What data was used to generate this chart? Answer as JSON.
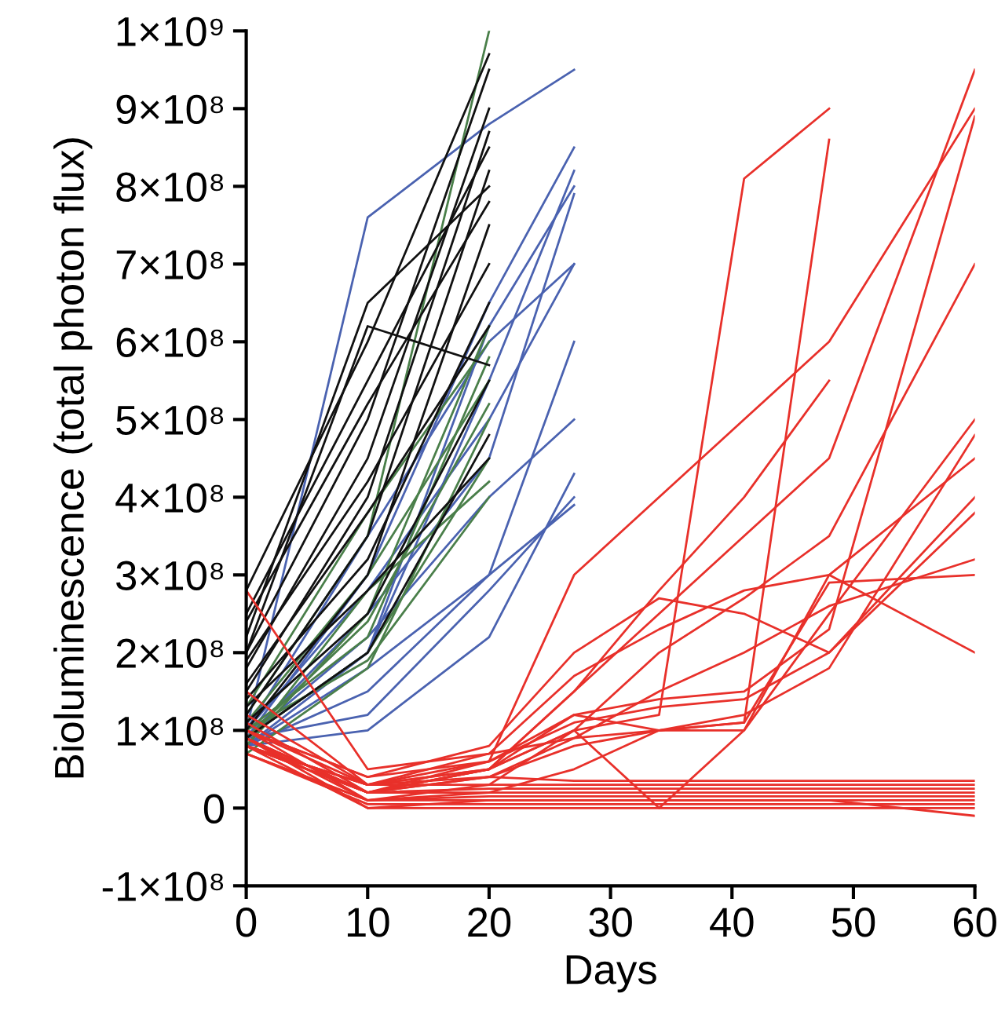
{
  "chart_data": {
    "type": "line",
    "xlabel": "Days",
    "ylabel": "Bioluminescence (total photon flux)",
    "xlim": [
      0,
      60
    ],
    "xticks": [
      0,
      10,
      20,
      30,
      40,
      50,
      60
    ],
    "ylim": [
      -100000000.0,
      1000000000.0
    ],
    "yticks": [
      {
        "value": -100000000.0,
        "label": "-1×10⁸"
      },
      0,
      {
        "value": 100000000.0,
        "label": "1×10⁸"
      },
      {
        "value": 200000000.0,
        "label": "2×10⁸"
      },
      {
        "value": 300000000.0,
        "label": "3×10⁸"
      },
      {
        "value": 400000000.0,
        "label": "4×10⁸"
      },
      {
        "value": 500000000.0,
        "label": "5×10⁸"
      },
      {
        "value": 600000000.0,
        "label": "6×10⁸"
      },
      {
        "value": 700000000.0,
        "label": "7×10⁸"
      },
      {
        "value": 800000000.0,
        "label": "8×10⁸"
      },
      {
        "value": 900000000.0,
        "label": "9×10⁸"
      },
      {
        "value": 1000000000.0,
        "label": "1×10⁹"
      }
    ],
    "grid": false,
    "legend": false,
    "marker": "none",
    "line_style": "solid",
    "series": [
      {
        "color": "#4a62b0",
        "x": [
          0,
          10,
          20,
          27
        ],
        "values": [
          100000000.0,
          760000000.0,
          880000000.0,
          950000000.0
        ]
      },
      {
        "color": "#4a62b0",
        "x": [
          0,
          10,
          20,
          27
        ],
        "values": [
          90000000.0,
          300000000.0,
          650000000.0,
          850000000.0
        ]
      },
      {
        "color": "#4a62b0",
        "x": [
          0,
          10,
          20,
          27
        ],
        "values": [
          80000000.0,
          200000000.0,
          550000000.0,
          820000000.0
        ]
      },
      {
        "color": "#4a62b0",
        "x": [
          0,
          10,
          20,
          27
        ],
        "values": [
          90000000.0,
          250000000.0,
          450000000.0,
          790000000.0
        ]
      },
      {
        "color": "#4a62b0",
        "x": [
          0,
          10,
          20,
          27
        ],
        "values": [
          100000000.0,
          350000000.0,
          600000000.0,
          700000000.0
        ]
      },
      {
        "color": "#4a62b0",
        "x": [
          0,
          10,
          20,
          27
        ],
        "values": [
          80000000.0,
          150000000.0,
          300000000.0,
          600000000.0
        ]
      },
      {
        "color": "#4a62b0",
        "x": [
          0,
          10,
          20,
          27
        ],
        "values": [
          90000000.0,
          220000000.0,
          400000000.0,
          500000000.0
        ]
      },
      {
        "color": "#4a62b0",
        "x": [
          0,
          10,
          20,
          27
        ],
        "values": [
          80000000.0,
          100000000.0,
          220000000.0,
          430000000.0
        ]
      },
      {
        "color": "#4a62b0",
        "x": [
          0,
          10,
          20,
          27
        ],
        "values": [
          90000000.0,
          120000000.0,
          280000000.0,
          400000000.0
        ]
      },
      {
        "color": "#4a62b0",
        "x": [
          0,
          10,
          20,
          27
        ],
        "values": [
          80000000.0,
          180000000.0,
          300000000.0,
          390000000.0
        ]
      },
      {
        "color": "#4a62b0",
        "x": [
          0,
          10,
          20,
          27
        ],
        "values": [
          100000000.0,
          280000000.0,
          500000000.0,
          700000000.0
        ]
      },
      {
        "color": "#4a62b0",
        "x": [
          0,
          10,
          20,
          27
        ],
        "values": [
          90000000.0,
          200000000.0,
          620000000.0,
          800000000.0
        ]
      },
      {
        "color": "#4a7f4a",
        "x": [
          0,
          10,
          20
        ],
        "values": [
          120000000.0,
          350000000.0,
          1000000000.0
        ]
      },
      {
        "color": "#4a7f4a",
        "x": [
          0,
          10,
          20
        ],
        "values": [
          80000000.0,
          250000000.0,
          620000000.0
        ]
      },
      {
        "color": "#4a7f4a",
        "x": [
          0,
          10,
          20
        ],
        "values": [
          100000000.0,
          220000000.0,
          580000000.0
        ]
      },
      {
        "color": "#4a7f4a",
        "x": [
          0,
          10,
          20
        ],
        "values": [
          70000000.0,
          180000000.0,
          500000000.0
        ]
      },
      {
        "color": "#4a7f4a",
        "x": [
          0,
          10,
          20
        ],
        "values": [
          90000000.0,
          200000000.0,
          450000000.0
        ]
      },
      {
        "color": "#4a7f4a",
        "x": [
          0,
          10,
          20
        ],
        "values": [
          110000000.0,
          300000000.0,
          550000000.0
        ]
      },
      {
        "color": "#4a7f4a",
        "x": [
          0,
          10,
          20
        ],
        "values": [
          80000000.0,
          280000000.0,
          420000000.0
        ]
      },
      {
        "color": "#4a7f4a",
        "x": [
          0,
          10,
          20
        ],
        "values": [
          130000000.0,
          380000000.0,
          600000000.0
        ]
      },
      {
        "color": "#4a7f4a",
        "x": [
          0,
          10,
          20
        ],
        "values": [
          90000000.0,
          240000000.0,
          520000000.0
        ]
      },
      {
        "color": "#4a7f4a",
        "x": [
          0,
          10,
          20
        ],
        "values": [
          100000000.0,
          190000000.0,
          400000000.0
        ]
      },
      {
        "color": "#111111",
        "x": [
          0,
          10,
          20
        ],
        "values": [
          280000000.0,
          600000000.0,
          970000000.0
        ]
      },
      {
        "color": "#111111",
        "x": [
          0,
          10,
          20
        ],
        "values": [
          200000000.0,
          500000000.0,
          950000000.0
        ]
      },
      {
        "color": "#111111",
        "x": [
          0,
          10,
          20
        ],
        "values": [
          180000000.0,
          450000000.0,
          900000000.0
        ]
      },
      {
        "color": "#111111",
        "x": [
          0,
          10,
          20
        ],
        "values": [
          150000000.0,
          400000000.0,
          870000000.0
        ]
      },
      {
        "color": "#111111",
        "x": [
          0,
          10,
          20
        ],
        "values": [
          250000000.0,
          550000000.0,
          850000000.0
        ]
      },
      {
        "color": "#111111",
        "x": [
          0,
          10,
          20
        ],
        "values": [
          120000000.0,
          350000000.0,
          820000000.0
        ]
      },
      {
        "color": "#111111",
        "x": [
          0,
          10,
          20
        ],
        "values": [
          220000000.0,
          650000000.0,
          800000000.0
        ]
      },
      {
        "color": "#111111",
        "x": [
          0,
          10,
          20
        ],
        "values": [
          100000000.0,
          300000000.0,
          750000000.0
        ]
      },
      {
        "color": "#111111",
        "x": [
          0,
          10,
          20
        ],
        "values": [
          190000000.0,
          420000000.0,
          700000000.0
        ]
      },
      {
        "color": "#111111",
        "x": [
          0,
          10,
          20
        ],
        "values": [
          140000000.0,
          320000000.0,
          650000000.0
        ]
      },
      {
        "color": "#111111",
        "x": [
          0,
          10,
          20
        ],
        "values": [
          200000000.0,
          620000000.0,
          570000000.0
        ]
      },
      {
        "color": "#111111",
        "x": [
          0,
          10,
          20
        ],
        "values": [
          110000000.0,
          250000000.0,
          550000000.0
        ]
      },
      {
        "color": "#111111",
        "x": [
          0,
          10,
          20
        ],
        "values": [
          90000000.0,
          200000000.0,
          480000000.0
        ]
      },
      {
        "color": "#111111",
        "x": [
          0,
          10,
          20
        ],
        "values": [
          160000000.0,
          380000000.0,
          620000000.0
        ]
      },
      {
        "color": "#111111",
        "x": [
          0,
          10,
          20
        ],
        "values": [
          130000000.0,
          280000000.0,
          450000000.0
        ]
      },
      {
        "color": "#111111",
        "x": [
          0,
          10,
          20
        ],
        "values": [
          240000000.0,
          520000000.0,
          780000000.0
        ]
      },
      {
        "color": "#e8302a",
        "x": [
          0,
          10,
          20,
          27,
          34,
          41,
          48
        ],
        "values": [
          100000000.0,
          30000000.0,
          50000000.0,
          100000000.0,
          120000000.0,
          810000000.0,
          900000000.0
        ]
      },
      {
        "color": "#e8302a",
        "x": [
          0,
          10,
          20,
          27,
          34,
          41,
          48
        ],
        "values": [
          90000000.0,
          20000000.0,
          40000000.0,
          80000000.0,
          100000000.0,
          110000000.0,
          860000000.0
        ]
      },
      {
        "color": "#e8302a",
        "x": [
          0,
          10,
          20,
          27,
          34,
          41,
          48
        ],
        "values": [
          80000000.0,
          20000000.0,
          50000000.0,
          150000000.0,
          280000000.0,
          400000000.0,
          550000000.0
        ]
      },
      {
        "color": "#e8302a",
        "x": [
          0,
          10,
          20,
          27,
          34,
          41,
          48,
          60
        ],
        "values": [
          80000000.0,
          30000000.0,
          60000000.0,
          300000000.0,
          400000000.0,
          500000000.0,
          600000000.0,
          900000000.0
        ]
      },
      {
        "color": "#e8302a",
        "x": [
          0,
          10,
          20,
          27,
          34,
          41,
          48,
          60
        ],
        "values": [
          90000000.0,
          20000000.0,
          50000000.0,
          150000000.0,
          250000000.0,
          350000000.0,
          450000000.0,
          950000000.0
        ]
      },
      {
        "color": "#e8302a",
        "x": [
          0,
          10,
          20,
          27,
          34,
          41,
          48,
          60
        ],
        "values": [
          70000000.0,
          10000000.0,
          30000000.0,
          100000000.0,
          200000000.0,
          270000000.0,
          350000000.0,
          700000000.0
        ]
      },
      {
        "color": "#e8302a",
        "x": [
          0,
          10,
          20,
          27,
          34,
          41,
          48,
          60
        ],
        "values": [
          80000000.0,
          30000000.0,
          50000000.0,
          120000000.0,
          140000000.0,
          150000000.0,
          230000000.0,
          890000000.0
        ]
      },
      {
        "color": "#e8302a",
        "x": [
          0,
          10,
          20,
          27,
          34,
          41,
          48,
          60
        ],
        "values": [
          100000000.0,
          40000000.0,
          80000000.0,
          200000000.0,
          270000000.0,
          250000000.0,
          200000000.0,
          400000000.0
        ]
      },
      {
        "color": "#e8302a",
        "x": [
          0,
          10,
          20,
          27,
          34,
          41,
          48,
          60
        ],
        "values": [
          90000000.0,
          20000000.0,
          60000000.0,
          120000000.0,
          100000000.0,
          110000000.0,
          290000000.0,
          300000000.0
        ]
      },
      {
        "color": "#e8302a",
        "x": [
          0,
          10,
          20,
          27,
          34,
          41,
          48,
          60
        ],
        "values": [
          80000000.0,
          20000000.0,
          40000000.0,
          90000000.0,
          150000000.0,
          200000000.0,
          260000000.0,
          320000000.0
        ]
      },
      {
        "color": "#e8302a",
        "x": [
          0,
          10,
          20,
          27,
          34,
          41,
          48,
          60
        ],
        "values": [
          70000000.0,
          10000000.0,
          20000000.0,
          50000000.0,
          100000000.0,
          100000000.0,
          300000000.0,
          450000000.0
        ]
      },
      {
        "color": "#e8302a",
        "x": [
          0,
          10,
          20,
          27,
          34,
          41,
          48,
          60
        ],
        "values": [
          80000000.0,
          30000000.0,
          70000000.0,
          170000000.0,
          230000000.0,
          280000000.0,
          300000000.0,
          200000000.0
        ]
      },
      {
        "color": "#e8302a",
        "x": [
          0,
          10,
          20,
          27,
          34,
          41,
          48,
          60
        ],
        "values": [
          90000000.0,
          20000000.0,
          50000000.0,
          100000000.0,
          0.0,
          100000000.0,
          250000000.0,
          500000000.0
        ]
      },
      {
        "color": "#e8302a",
        "x": [
          0,
          10,
          20,
          27,
          34,
          41,
          48,
          60
        ],
        "values": [
          100000000.0,
          40000000.0,
          60000000.0,
          110000000.0,
          130000000.0,
          140000000.0,
          200000000.0,
          380000000.0
        ]
      },
      {
        "color": "#e8302a",
        "x": [
          0,
          10,
          20,
          27,
          34,
          41,
          48,
          60
        ],
        "values": [
          280000000.0,
          50000000.0,
          70000000.0,
          90000000.0,
          100000000.0,
          120000000.0,
          180000000.0,
          480000000.0
        ]
      },
      {
        "color": "#e8302a",
        "x": [
          0,
          10,
          20,
          27,
          34,
          41,
          48,
          60
        ],
        "values": [
          80000000.0,
          0.0,
          10000000.0,
          10000000.0,
          10000000.0,
          10000000.0,
          10000000.0,
          -10000000.0
        ]
      },
      {
        "color": "#e8302a",
        "x": [
          0,
          10,
          20,
          27,
          34,
          41,
          48,
          60
        ],
        "values": [
          90000000.0,
          0.0,
          0.0,
          0.0,
          0.0,
          0.0,
          0.0,
          0.0
        ]
      },
      {
        "color": "#e8302a",
        "x": [
          0,
          10,
          20,
          27,
          34,
          41,
          48,
          60
        ],
        "values": [
          100000000.0,
          10000000.0,
          10000000.0,
          10000000.0,
          10000000.0,
          10000000.0,
          10000000.0,
          10000000.0
        ]
      },
      {
        "color": "#e8302a",
        "x": [
          0,
          10,
          20,
          27,
          34,
          41,
          48,
          60
        ],
        "values": [
          80000000.0,
          20000000.0,
          20000000.0,
          20000000.0,
          20000000.0,
          20000000.0,
          20000000.0,
          20000000.0
        ]
      },
      {
        "color": "#e8302a",
        "x": [
          0,
          10,
          20,
          27,
          34,
          41,
          48,
          60
        ],
        "values": [
          120000000.0,
          30000000.0,
          30000000.0,
          30000000.0,
          30000000.0,
          30000000.0,
          30000000.0,
          30000000.0
        ]
      },
      {
        "color": "#e8302a",
        "x": [
          0,
          10,
          20,
          27,
          34,
          41,
          48,
          60
        ],
        "values": [
          150000000.0,
          30000000.0,
          40000000.0,
          35000000.0,
          35000000.0,
          35000000.0,
          35000000.0,
          35000000.0
        ]
      },
      {
        "color": "#e8302a",
        "x": [
          0,
          10,
          20,
          27,
          34,
          41,
          48,
          60
        ],
        "values": [
          90000000.0,
          10000000.0,
          15000000.0,
          15000000.0,
          15000000.0,
          15000000.0,
          15000000.0,
          15000000.0
        ]
      },
      {
        "color": "#e8302a",
        "x": [
          0,
          10,
          20,
          27,
          34,
          41,
          48,
          60
        ],
        "values": [
          110000000.0,
          20000000.0,
          25000000.0,
          25000000.0,
          25000000.0,
          25000000.0,
          25000000.0,
          25000000.0
        ]
      },
      {
        "color": "#e8302a",
        "x": [
          0,
          10,
          20,
          27,
          34,
          41,
          48,
          60
        ],
        "values": [
          70000000.0,
          5000000.0,
          5000000.0,
          5000000.0,
          5000000.0,
          5000000.0,
          5000000.0,
          5000000.0
        ]
      }
    ]
  }
}
